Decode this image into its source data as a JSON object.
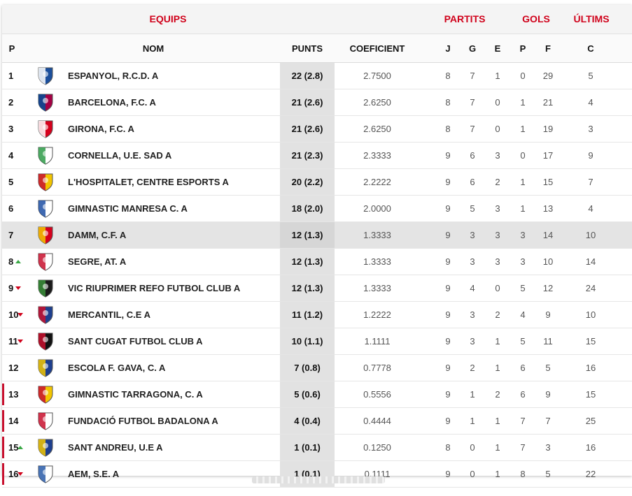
{
  "header": {
    "groups": {
      "equips": "EQUIPS",
      "partits": "PARTITS",
      "gols": "GOLS",
      "ultims": "ÚLTIMS"
    },
    "columns": {
      "p": "P",
      "nom": "NOM",
      "punts": "PUNTS",
      "coeficient": "COEFICIENT",
      "j": "J",
      "g": "G",
      "e": "E",
      "pp": "P",
      "f": "F",
      "c": "C"
    }
  },
  "colors": {
    "accent": "#d0021b",
    "up": "#3aa845",
    "down": "#d0021b",
    "highlight": "#e4e4e4"
  },
  "rows": [
    {
      "pos": "1",
      "trend": "",
      "crest": "espanyol-crest-icon",
      "c1": "#1b4f9c",
      "c2": "#ffffff",
      "name": "ESPANYOL, R.C.D. A",
      "punts": "22 (2.8)",
      "coef": "2.7500",
      "j": "8",
      "g": "7",
      "e": "1",
      "p": "0",
      "f": "29",
      "c": "5",
      "hl": false,
      "rel": false
    },
    {
      "pos": "2",
      "trend": "",
      "crest": "barcelona-crest-icon",
      "c1": "#a50044",
      "c2": "#004d98",
      "name": "BARCELONA, F.C. A",
      "punts": "21 (2.6)",
      "coef": "2.6250",
      "j": "8",
      "g": "7",
      "e": "0",
      "p": "1",
      "f": "21",
      "c": "4",
      "hl": false,
      "rel": false
    },
    {
      "pos": "3",
      "trend": "",
      "crest": "girona-crest-icon",
      "c1": "#d6001c",
      "c2": "#ffffff",
      "name": "GIRONA, F.C. A",
      "punts": "21 (2.6)",
      "coef": "2.6250",
      "j": "8",
      "g": "7",
      "e": "0",
      "p": "1",
      "f": "19",
      "c": "3",
      "hl": false,
      "rel": false
    },
    {
      "pos": "4",
      "trend": "",
      "crest": "cornella-crest-icon",
      "c1": "#ffffff",
      "c2": "#2e9b48",
      "name": "CORNELLA, U.E. SAD A",
      "punts": "21 (2.3)",
      "coef": "2.3333",
      "j": "9",
      "g": "6",
      "e": "3",
      "p": "0",
      "f": "17",
      "c": "9",
      "hl": false,
      "rel": false
    },
    {
      "pos": "5",
      "trend": "",
      "crest": "hospitalet-crest-icon",
      "c1": "#f2c500",
      "c2": "#c8102e",
      "name": "L'HOSPITALET, CENTRE ESPORTS A",
      "punts": "20 (2.2)",
      "coef": "2.2222",
      "j": "9",
      "g": "6",
      "e": "2",
      "p": "1",
      "f": "15",
      "c": "7",
      "hl": false,
      "rel": false
    },
    {
      "pos": "6",
      "trend": "",
      "crest": "manresa-crest-icon",
      "c1": "#ffffff",
      "c2": "#1d4fa3",
      "name": "GIMNASTIC MANRESA C. A",
      "punts": "18 (2.0)",
      "coef": "2.0000",
      "j": "9",
      "g": "5",
      "e": "3",
      "p": "1",
      "f": "13",
      "c": "4",
      "hl": false,
      "rel": false
    },
    {
      "pos": "7",
      "trend": "",
      "crest": "damm-crest-icon",
      "c1": "#d6001c",
      "c2": "#f2c500",
      "name": "DAMM, C.F. A",
      "punts": "12 (1.3)",
      "coef": "1.3333",
      "j": "9",
      "g": "3",
      "e": "3",
      "p": "3",
      "f": "14",
      "c": "10",
      "hl": true,
      "rel": false
    },
    {
      "pos": "8",
      "trend": "up",
      "crest": "segre-crest-icon",
      "c1": "#ffffff",
      "c2": "#c8102e",
      "name": "SEGRE, AT. A",
      "punts": "12 (1.3)",
      "coef": "1.3333",
      "j": "9",
      "g": "3",
      "e": "3",
      "p": "3",
      "f": "10",
      "c": "14",
      "hl": false,
      "rel": false
    },
    {
      "pos": "9",
      "trend": "down",
      "crest": "vic-crest-icon",
      "c1": "#1a1a1a",
      "c2": "#3a8f3a",
      "name": "VIC RIUPRIMER REFO FUTBOL CLUB A",
      "punts": "12 (1.3)",
      "coef": "1.3333",
      "j": "9",
      "g": "4",
      "e": "0",
      "p": "5",
      "f": "12",
      "c": "24",
      "hl": false,
      "rel": false
    },
    {
      "pos": "10",
      "trend": "down",
      "crest": "mercantil-crest-icon",
      "c1": "#1d3f8f",
      "c2": "#c8102e",
      "name": "MERCANTIL, C.E A",
      "punts": "11 (1.2)",
      "coef": "1.2222",
      "j": "9",
      "g": "3",
      "e": "2",
      "p": "4",
      "f": "9",
      "c": "10",
      "hl": false,
      "rel": false
    },
    {
      "pos": "11",
      "trend": "down",
      "crest": "sant-cugat-crest-icon",
      "c1": "#111111",
      "c2": "#c8102e",
      "name": "SANT CUGAT FUTBOL CLUB A",
      "punts": "10 (1.1)",
      "coef": "1.1111",
      "j": "9",
      "g": "3",
      "e": "1",
      "p": "5",
      "f": "11",
      "c": "15",
      "hl": false,
      "rel": false
    },
    {
      "pos": "12",
      "trend": "",
      "crest": "gava-crest-icon",
      "c1": "#1d3f8f",
      "c2": "#f2c500",
      "name": "ESCOLA F. GAVA, C. A",
      "punts": "7 (0.8)",
      "coef": "0.7778",
      "j": "9",
      "g": "2",
      "e": "1",
      "p": "6",
      "f": "5",
      "c": "16",
      "hl": false,
      "rel": false
    },
    {
      "pos": "13",
      "trend": "",
      "crest": "tarragona-crest-icon",
      "c1": "#f2c500",
      "c2": "#c8102e",
      "name": "GIMNASTIC TARRAGONA, C. A",
      "punts": "5 (0.6)",
      "coef": "0.5556",
      "j": "9",
      "g": "1",
      "e": "2",
      "p": "6",
      "f": "9",
      "c": "15",
      "hl": false,
      "rel": true
    },
    {
      "pos": "14",
      "trend": "",
      "crest": "badalona-crest-icon",
      "c1": "#ffffff",
      "c2": "#c8102e",
      "name": "FUNDACIÓ FUTBOL BADALONA A",
      "punts": "4 (0.4)",
      "coef": "0.4444",
      "j": "9",
      "g": "1",
      "e": "1",
      "p": "7",
      "f": "7",
      "c": "25",
      "hl": false,
      "rel": true
    },
    {
      "pos": "15",
      "trend": "up",
      "crest": "sant-andreu-crest-icon",
      "c1": "#1d3f8f",
      "c2": "#f2c500",
      "name": "SANT ANDREU, U.E A",
      "punts": "1 (0.1)",
      "coef": "0.1250",
      "j": "8",
      "g": "0",
      "e": "1",
      "p": "7",
      "f": "3",
      "c": "16",
      "hl": false,
      "rel": true
    },
    {
      "pos": "16",
      "trend": "down",
      "crest": "aem-crest-icon",
      "c1": "#ffffff",
      "c2": "#2a5ca8",
      "name": "AEM, S.E. A",
      "punts": "1 (0.1)",
      "coef": "0.1111",
      "j": "9",
      "g": "0",
      "e": "1",
      "p": "8",
      "f": "5",
      "c": "22",
      "hl": false,
      "rel": true
    }
  ]
}
